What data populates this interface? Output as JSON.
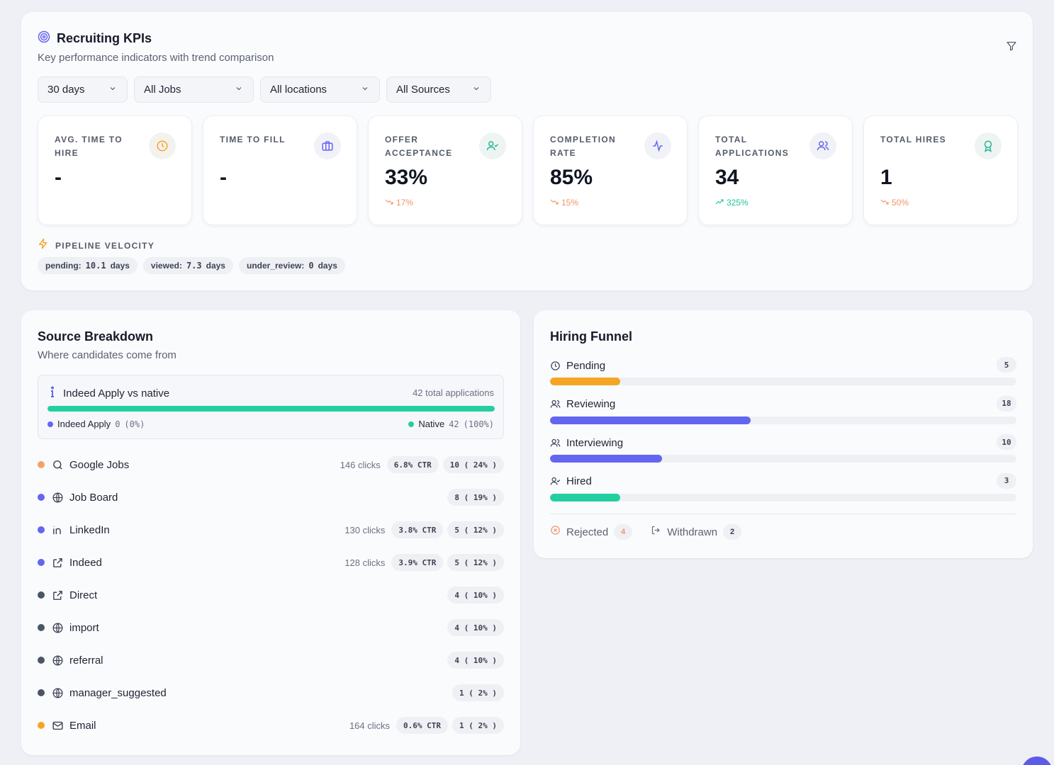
{
  "kpi": {
    "title": "Recruiting KPIs",
    "subtitle": "Key performance indicators with trend comparison",
    "filters": [
      "30 days",
      "All Jobs",
      "All locations",
      "All Sources"
    ],
    "metrics": [
      {
        "label": "AVG. TIME TO HIRE",
        "value": "-",
        "trend": "",
        "trend_dir": "",
        "icon": "clock-icon"
      },
      {
        "label": "TIME TO FILL",
        "value": "-",
        "trend": "",
        "trend_dir": "",
        "icon": "briefcase-icon"
      },
      {
        "label": "OFFER ACCEPTANCE",
        "value": "33%",
        "trend": "17%",
        "trend_dir": "down",
        "icon": "user-check-icon"
      },
      {
        "label": "COMPLETION RATE",
        "value": "85%",
        "trend": "15%",
        "trend_dir": "down",
        "icon": "activity-icon"
      },
      {
        "label": "TOTAL APPLICATIONS",
        "value": "34",
        "trend": "325%",
        "trend_dir": "up",
        "icon": "users-icon"
      },
      {
        "label": "TOTAL HIRES",
        "value": "1",
        "trend": "50%",
        "trend_dir": "down",
        "icon": "award-icon"
      }
    ],
    "velocity": {
      "title": "PIPELINE VELOCITY",
      "items": [
        {
          "label": "pending:",
          "value": "10.1",
          "unit": "days"
        },
        {
          "label": "viewed:",
          "value": "7.3",
          "unit": "days"
        },
        {
          "label": "under_review:",
          "value": "0",
          "unit": "days"
        }
      ]
    }
  },
  "source": {
    "title": "Source Breakdown",
    "subtitle": "Where candidates come from",
    "indeed_box": {
      "title": "Indeed Apply vs native",
      "total": "42 total applications",
      "native_fraction": 1.0,
      "left_label": "Indeed Apply",
      "left_value": "0",
      "left_pct": "(0%)",
      "right_label": "Native",
      "right_value": "42",
      "right_pct": "(100%)"
    },
    "rows": [
      {
        "name": "Google Jobs",
        "icon": "search-icon",
        "dot": "#f5a06a",
        "clicks": "146 clicks",
        "ctr": "6.8% CTR",
        "count": "10 ( 24% )"
      },
      {
        "name": "Job Board",
        "icon": "globe-icon",
        "dot": "#6366f1",
        "clicks": "",
        "ctr": "",
        "count": "8 ( 19% )"
      },
      {
        "name": "LinkedIn",
        "icon": "linkedin-icon",
        "dot": "#6366f1",
        "clicks": "130 clicks",
        "ctr": "3.8% CTR",
        "count": "5 ( 12% )"
      },
      {
        "name": "Indeed",
        "icon": "external-link-icon",
        "dot": "#6366f1",
        "clicks": "128 clicks",
        "ctr": "3.9% CTR",
        "count": "5 ( 12% )"
      },
      {
        "name": "Direct",
        "icon": "external-link-icon",
        "dot": "#4b5563",
        "clicks": "",
        "ctr": "",
        "count": "4 ( 10% )"
      },
      {
        "name": "import",
        "icon": "globe-icon",
        "dot": "#4b5563",
        "clicks": "",
        "ctr": "",
        "count": "4 ( 10% )"
      },
      {
        "name": "referral",
        "icon": "globe-icon",
        "dot": "#4b5563",
        "clicks": "",
        "ctr": "",
        "count": "4 ( 10% )"
      },
      {
        "name": "manager_suggested",
        "icon": "globe-icon",
        "dot": "#4b5563",
        "clicks": "",
        "ctr": "",
        "count": "1 ( 2% )"
      },
      {
        "name": "Email",
        "icon": "mail-icon",
        "dot": "#f5a524",
        "clicks": "164 clicks",
        "ctr": "0.6% CTR",
        "count": "1 ( 2% )"
      }
    ]
  },
  "funnel": {
    "title": "Hiring Funnel",
    "stages": [
      {
        "label": "Pending",
        "count": "5",
        "fraction": 0.15,
        "color": "#f5a524",
        "icon": "clock-icon"
      },
      {
        "label": "Reviewing",
        "count": "18",
        "fraction": 0.43,
        "color": "#6366f1",
        "icon": "users-icon"
      },
      {
        "label": "Interviewing",
        "count": "10",
        "fraction": 0.24,
        "color": "#6366f1",
        "icon": "users-icon"
      },
      {
        "label": "Hired",
        "count": "3",
        "fraction": 0.15,
        "color": "#23cfa0",
        "icon": "user-check-icon"
      }
    ],
    "rejected": {
      "label": "Rejected",
      "count": "4"
    },
    "withdrawn": {
      "label": "Withdrawn",
      "count": "2"
    }
  },
  "colors": {
    "accent": "#6366f1",
    "success": "#23cfa0",
    "warning": "#f5a524",
    "danger_soft": "#f0956a"
  }
}
